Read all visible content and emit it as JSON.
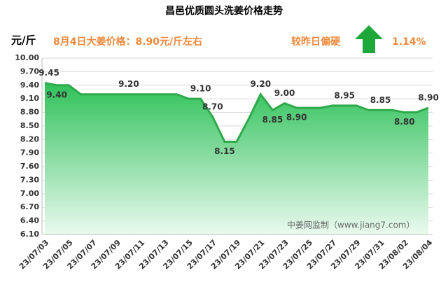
{
  "chart_data": {
    "type": "area",
    "title": "昌邑优质圆头洗姜价格走势",
    "y_label": "元/斤",
    "annotations": [
      "8月4日大姜价格：8.90元/斤左右",
      "较昨日偏硬",
      "1.14%",
      "中姜网监制（www.jiang7.com）"
    ],
    "categories": [
      "23/07/03",
      null,
      "23/07/05",
      null,
      "23/07/07",
      null,
      "23/07/09",
      null,
      "23/07/11",
      null,
      "23/07/13",
      null,
      "23/07/15",
      null,
      "23/07/17",
      null,
      "23/07/19",
      null,
      "23/07/21",
      null,
      "23/07/23",
      null,
      "23/07/25",
      null,
      "23/07/27",
      null,
      "23/07/29",
      null,
      "23/07/31",
      null,
      "23/08/02",
      null,
      "23/08/04"
    ],
    "values": [
      9.45,
      9.4,
      9.4,
      9.2,
      9.2,
      9.2,
      9.2,
      9.2,
      9.2,
      9.2,
      9.2,
      9.2,
      9.1,
      9.1,
      8.7,
      8.15,
      8.15,
      8.65,
      9.2,
      8.85,
      9.0,
      8.9,
      8.9,
      8.9,
      8.95,
      8.95,
      8.95,
      8.85,
      8.85,
      8.85,
      8.8,
      8.8,
      8.9
    ],
    "value_labels": [
      "9.45",
      "9.40",
      null,
      null,
      null,
      null,
      null,
      "9.20",
      null,
      null,
      null,
      null,
      null,
      "9.10",
      "8.70",
      "8.15",
      null,
      null,
      "9.20",
      "8.85",
      "9.00",
      "8.90",
      null,
      null,
      null,
      "8.95",
      null,
      null,
      "8.85",
      null,
      "8.80",
      null,
      "8.90"
    ],
    "color": "#2eaa4a",
    "ylim": [
      6.1,
      10.0
    ],
    "yticks": [
      {
        "value": 6.1,
        "label": "6.10"
      },
      {
        "value": 6.4,
        "label": "6.40"
      },
      {
        "value": 6.7,
        "label": "6.70"
      },
      {
        "value": 7.0,
        "label": "7.00"
      },
      {
        "value": 7.3,
        "label": "7.30"
      },
      {
        "value": 7.6,
        "label": "7.60"
      },
      {
        "value": 7.9,
        "label": "7.90"
      },
      {
        "value": 8.2,
        "label": "8.20"
      },
      {
        "value": 8.5,
        "label": "8.50"
      },
      {
        "value": 8.8,
        "label": "8.80"
      },
      {
        "value": 9.1,
        "label": "9.10"
      },
      {
        "value": 9.4,
        "label": "9.40"
      },
      {
        "value": 9.7,
        "label": "9.70"
      },
      {
        "value": 10.0,
        "label": "10.00"
      }
    ],
    "grid": true
  }
}
